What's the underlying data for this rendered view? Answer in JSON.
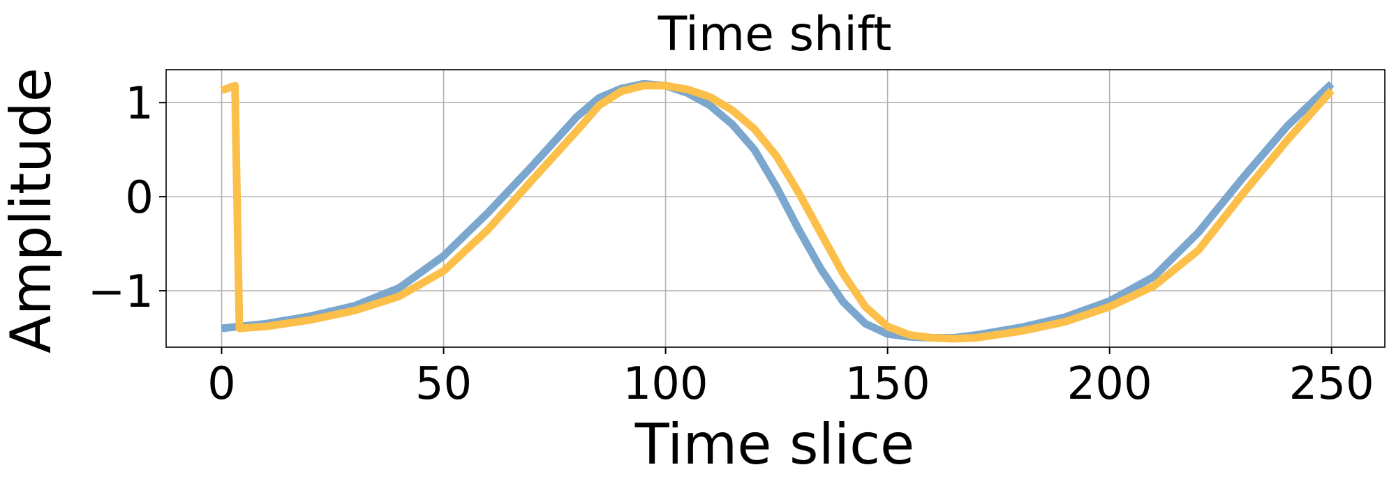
{
  "chart_data": {
    "type": "line",
    "title": "Time shift",
    "xlabel": "Time slice",
    "ylabel": "Amplitude",
    "xlim": [
      -12.5,
      262
    ],
    "ylim": [
      -1.6,
      1.35
    ],
    "xticks": [
      0,
      50,
      100,
      150,
      200,
      250
    ],
    "xtick_labels": [
      "0",
      "50",
      "100",
      "150",
      "200",
      "250"
    ],
    "yticks": [
      -1,
      0,
      1
    ],
    "ytick_labels": [
      "−1",
      "0",
      "1"
    ],
    "grid": true,
    "legend": "none",
    "series": [
      {
        "color": "#7ba7cf",
        "x": [
          0,
          10,
          20,
          30,
          40,
          50,
          60,
          70,
          80,
          85,
          90,
          95,
          100,
          105,
          110,
          115,
          120,
          125,
          130,
          135,
          140,
          145,
          150,
          155,
          160,
          165,
          170,
          180,
          190,
          200,
          210,
          220,
          230,
          240,
          250
        ],
        "y": [
          -1.4,
          -1.35,
          -1.27,
          -1.16,
          -0.97,
          -0.63,
          -0.17,
          0.33,
          0.85,
          1.05,
          1.15,
          1.2,
          1.18,
          1.1,
          0.97,
          0.77,
          0.5,
          0.1,
          -0.35,
          -0.77,
          -1.12,
          -1.35,
          -1.46,
          -1.49,
          -1.5,
          -1.5,
          -1.47,
          -1.39,
          -1.28,
          -1.11,
          -0.85,
          -0.38,
          0.2,
          0.75,
          1.2
        ]
      },
      {
        "color": "#fbbf4a",
        "x": [
          0,
          3,
          4,
          10,
          20,
          30,
          40,
          50,
          60,
          70,
          80,
          85,
          90,
          95,
          100,
          105,
          110,
          115,
          120,
          125,
          130,
          135,
          140,
          145,
          150,
          155,
          160,
          165,
          170,
          180,
          190,
          200,
          210,
          220,
          230,
          240,
          250
        ],
        "y": [
          1.13,
          1.18,
          -1.4,
          -1.38,
          -1.31,
          -1.21,
          -1.06,
          -0.79,
          -0.35,
          0.18,
          0.7,
          0.97,
          1.12,
          1.18,
          1.18,
          1.14,
          1.06,
          0.92,
          0.72,
          0.43,
          0.04,
          -0.39,
          -0.82,
          -1.17,
          -1.38,
          -1.47,
          -1.5,
          -1.51,
          -1.5,
          -1.43,
          -1.33,
          -1.17,
          -0.95,
          -0.57,
          0.03,
          0.6,
          1.13
        ]
      }
    ]
  }
}
